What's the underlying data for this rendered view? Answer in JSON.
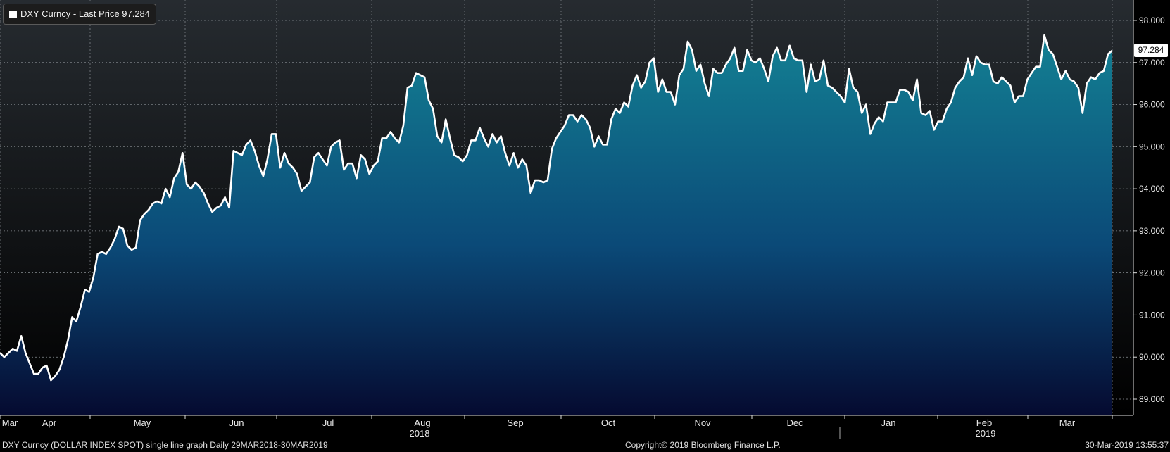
{
  "legend": {
    "label": "DXY Curncy - Last Price 97.284"
  },
  "last_price_badge": "97.284",
  "footer": {
    "left": "DXY Curncy (DOLLAR INDEX SPOT) single line graph  Daily 29MAR2018-30MAR2019",
    "middle": "Copyright© 2019 Bloomberg Finance L.P.",
    "right": "30-Mar-2019 13:55:37"
  },
  "colors": {
    "line": "#ffffff",
    "area_top": "#138093",
    "area_bottom": "#050a30",
    "bg_top": "#262b30",
    "bg_bottom": "#000000"
  },
  "chart_data": {
    "type": "area",
    "title": "DXY Curncy - Last Price 97.284",
    "series_name": "DXY Curncy",
    "last_value": 97.284,
    "ylim": [
      88.6,
      98.3
    ],
    "y_ticks": [
      "89.000",
      "90.000",
      "91.000",
      "92.000",
      "93.000",
      "94.000",
      "95.000",
      "96.000",
      "97.000",
      "98.000"
    ],
    "x_ticks": [
      "Mar",
      "Apr",
      "May",
      "Jun",
      "Jul",
      "Aug",
      "Sep",
      "Oct",
      "Nov",
      "Dec",
      "Jan",
      "Feb",
      "Mar"
    ],
    "year_labels": [
      "2018",
      "2019"
    ],
    "grid": true,
    "legend_position": "top-left",
    "values": [
      90.1,
      90.0,
      90.1,
      90.2,
      90.15,
      90.5,
      90.1,
      89.85,
      89.6,
      89.6,
      89.75,
      89.8,
      89.45,
      89.55,
      89.7,
      90.0,
      90.4,
      90.95,
      90.85,
      91.2,
      91.6,
      91.55,
      91.9,
      92.45,
      92.5,
      92.45,
      92.6,
      92.8,
      93.1,
      93.05,
      92.65,
      92.55,
      92.6,
      93.25,
      93.4,
      93.5,
      93.65,
      93.7,
      93.65,
      94.0,
      93.8,
      94.25,
      94.4,
      94.85,
      94.1,
      94.0,
      94.15,
      94.05,
      93.9,
      93.65,
      93.45,
      93.55,
      93.6,
      93.8,
      93.55,
      94.9,
      94.85,
      94.8,
      95.05,
      95.15,
      94.9,
      94.55,
      94.3,
      94.7,
      95.3,
      95.3,
      94.5,
      94.85,
      94.6,
      94.5,
      94.35,
      93.95,
      94.05,
      94.15,
      94.75,
      94.85,
      94.7,
      94.55,
      95.0,
      95.1,
      95.15,
      94.45,
      94.6,
      94.6,
      94.25,
      94.8,
      94.7,
      94.35,
      94.55,
      94.65,
      95.2,
      95.2,
      95.35,
      95.2,
      95.1,
      95.5,
      96.4,
      96.45,
      96.75,
      96.7,
      96.65,
      96.1,
      95.9,
      95.25,
      95.1,
      95.65,
      95.2,
      94.8,
      94.75,
      94.65,
      94.8,
      95.15,
      95.15,
      95.45,
      95.2,
      95.0,
      95.3,
      95.1,
      95.25,
      94.85,
      94.55,
      94.85,
      94.5,
      94.7,
      94.55,
      93.9,
      94.2,
      94.2,
      94.15,
      94.2,
      94.95,
      95.2,
      95.35,
      95.5,
      95.75,
      95.75,
      95.6,
      95.75,
      95.65,
      95.45,
      95.0,
      95.25,
      95.05,
      95.05,
      95.65,
      95.9,
      95.8,
      96.05,
      95.95,
      96.45,
      96.7,
      96.4,
      96.55,
      97.0,
      97.1,
      96.3,
      96.6,
      96.3,
      96.3,
      96.0,
      96.7,
      96.85,
      97.5,
      97.3,
      96.8,
      96.95,
      96.5,
      96.2,
      96.85,
      96.75,
      96.75,
      96.95,
      97.1,
      97.35,
      96.8,
      96.8,
      97.3,
      97.05,
      97.0,
      97.1,
      96.85,
      96.55,
      97.15,
      97.35,
      97.05,
      97.05,
      97.4,
      97.1,
      97.05,
      97.05,
      96.3,
      96.95,
      96.55,
      96.6,
      97.05,
      96.45,
      96.4,
      96.3,
      96.2,
      96.05,
      96.85,
      96.4,
      96.3,
      95.8,
      96.0,
      95.3,
      95.55,
      95.7,
      95.6,
      96.05,
      96.05,
      96.05,
      96.35,
      96.35,
      96.3,
      96.1,
      96.6,
      95.8,
      95.75,
      95.85,
      95.4,
      95.6,
      95.6,
      95.9,
      96.05,
      96.4,
      96.55,
      96.65,
      97.1,
      96.7,
      97.15,
      97.0,
      96.95,
      96.95,
      96.55,
      96.5,
      96.65,
      96.55,
      96.45,
      96.05,
      96.2,
      96.2,
      96.6,
      96.75,
      96.9,
      96.9,
      97.65,
      97.3,
      97.2,
      96.9,
      96.6,
      96.8,
      96.6,
      96.55,
      96.4,
      95.8,
      96.5,
      96.65,
      96.6,
      96.75,
      96.8,
      97.2,
      97.284
    ]
  }
}
